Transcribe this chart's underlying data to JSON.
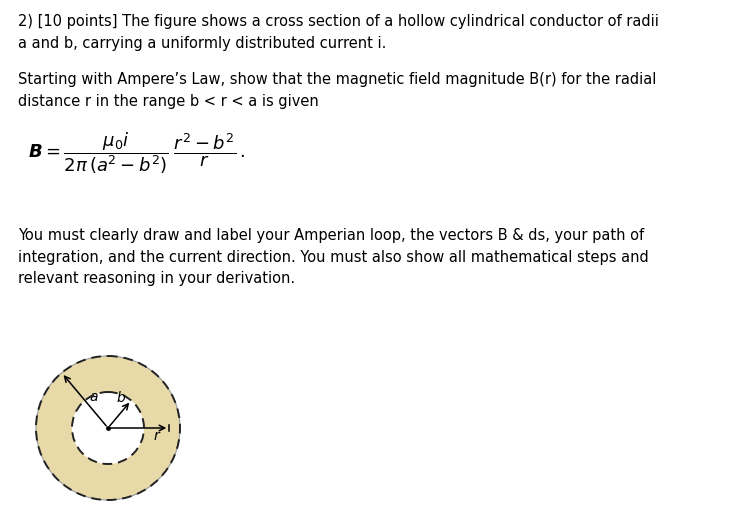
{
  "background_color": "#ffffff",
  "text_color": "#000000",
  "fig_width": 7.45,
  "fig_height": 5.08,
  "para1": "2) [10 points] The figure shows a cross section of a hollow cylindrical conductor of radii\na and b, carrying a uniformly distributed current i.",
  "para2": "Starting with Ampere’s Law, show that the magnetic field magnitude B(r) for the radial\ndistance r in the range b < r < a is given",
  "para3": "You must clearly draw and label your Amperian loop, the vectors B & ds, your path of\nintegration, and the current direction. You must also show all mathematical steps and\nrelevant reasoning in your derivation.",
  "annulus_color": "#e8d9a8",
  "dashed_color": "#222222",
  "font_size_body": 10.5,
  "font_size_label": 10
}
